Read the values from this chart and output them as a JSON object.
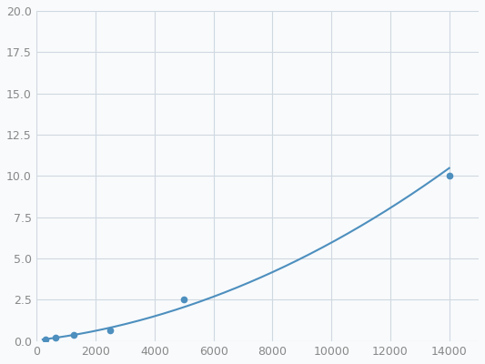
{
  "x": [
    312,
    625,
    1250,
    2500,
    5000,
    14000
  ],
  "y": [
    0.1,
    0.2,
    0.35,
    0.65,
    2.5,
    10.0
  ],
  "line_color": "#4d8fbe",
  "marker_color": "#4d8fbe",
  "marker_size": 4.5,
  "line_width": 1.5,
  "xlim": [
    0,
    15000
  ],
  "ylim": [
    0,
    20
  ],
  "xticks": [
    0,
    2000,
    4000,
    6000,
    8000,
    10000,
    12000,
    14000
  ],
  "yticks": [
    0.0,
    2.5,
    5.0,
    7.5,
    10.0,
    12.5,
    15.0,
    17.5,
    20.0
  ],
  "grid_color": "#d0d8e0",
  "background_color": "#f8fafc",
  "tick_label_color": "#888888",
  "tick_label_fontsize": 9
}
